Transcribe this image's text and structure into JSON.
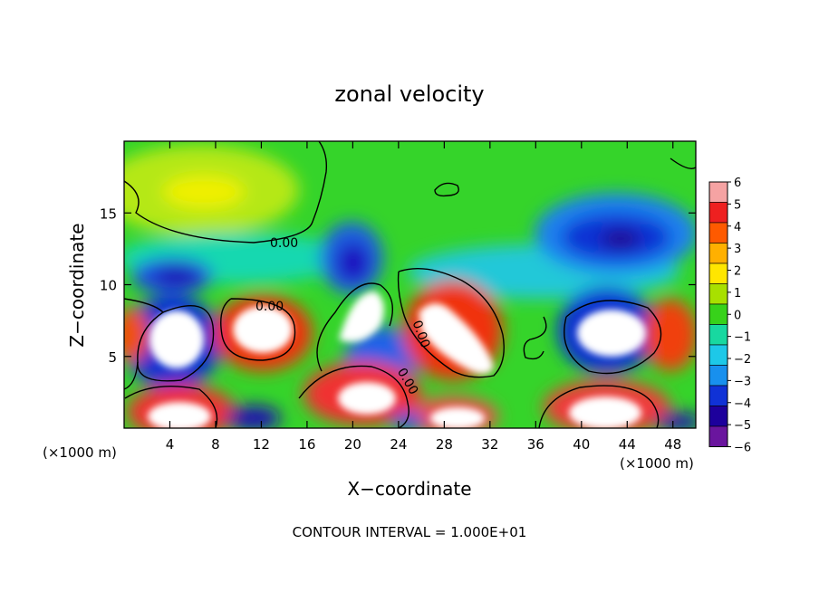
{
  "chart_data": {
    "type": "heatmap",
    "title": "zonal velocity",
    "xlabel": "X−coordinate",
    "ylabel": "Z−coordinate",
    "x_unit": "(×1000 m)",
    "xlim": [
      0,
      50
    ],
    "ylim": [
      0,
      20
    ],
    "x_ticks": [
      4,
      8,
      12,
      16,
      20,
      24,
      28,
      32,
      36,
      40,
      44,
      48
    ],
    "y_ticks": [
      5,
      10,
      15
    ],
    "colorbar": {
      "range": [
        -6,
        6
      ],
      "ticks": [
        6,
        5,
        4,
        3,
        2,
        1,
        0,
        -1,
        -2,
        -3,
        -4,
        -5,
        -6
      ],
      "tick_labels": [
        "6",
        "5",
        "4",
        "3",
        "2",
        "1",
        "0",
        "−1",
        "−2",
        "−3",
        "−4",
        "−5",
        "−6"
      ],
      "colors": [
        "#f5a3a3",
        "#ee2020",
        "#fe5a00",
        "#ffb000",
        "#ffe600",
        "#a8e000",
        "#37d21a",
        "#18d8a0",
        "#1dc8e8",
        "#1890ee",
        "#1032d6",
        "#1d009c",
        "#6a159e"
      ]
    },
    "contour_labels": [
      {
        "text": "0.00",
        "x": 14.0,
        "z": 13.1
      },
      {
        "text": "0.00",
        "x": 13.3,
        "z": 8.3
      },
      {
        "text": "0.00",
        "x": 25.5,
        "z": 3.0
      },
      {
        "text": "0.00",
        "x": 25.8,
        "z": 6.4
      }
    ],
    "features": [
      {
        "kind": "positive",
        "x": 5.0,
        "z": 6.0,
        "value": 8
      },
      {
        "kind": "positive",
        "x": 12.0,
        "z": 6.6,
        "value": 8
      },
      {
        "kind": "positive",
        "x": 21.5,
        "z": 8.5,
        "value": 7
      },
      {
        "kind": "positive",
        "x": 29.0,
        "z": 6.5,
        "value": 8
      },
      {
        "kind": "positive",
        "x": 43.0,
        "z": 6.5,
        "value": 8
      },
      {
        "kind": "positive",
        "x": 5.5,
        "z": 1.0,
        "value": 7
      },
      {
        "kind": "positive",
        "x": 21.0,
        "z": 2.0,
        "value": 7
      },
      {
        "kind": "positive",
        "x": 30.0,
        "z": 1.0,
        "value": 6
      },
      {
        "kind": "positive",
        "x": 42.0,
        "z": 1.0,
        "value": 7
      },
      {
        "kind": "negative",
        "x": 43.5,
        "z": 13.0,
        "value": -5
      },
      {
        "kind": "negative",
        "x": 20.0,
        "z": 11.0,
        "value": -4
      },
      {
        "kind": "negative",
        "x": 3.5,
        "z": 10.5,
        "value": -4
      },
      {
        "kind": "positive",
        "x": 7.0,
        "z": 16.5,
        "value": 2
      }
    ],
    "contour_interval_text": "CONTOUR INTERVAL = 1.000E+01"
  }
}
